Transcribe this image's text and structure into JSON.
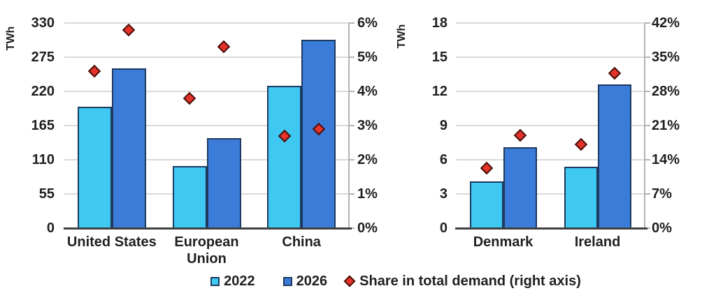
{
  "chart_data": [
    {
      "type": "bar",
      "name": "major-regions",
      "categories": [
        "United States",
        "European Union",
        "China"
      ],
      "series": [
        {
          "name": "2022",
          "type": "bar",
          "axis": "left",
          "values": [
            195,
            100,
            229
          ]
        },
        {
          "name": "2026",
          "type": "bar",
          "axis": "left",
          "values": [
            257,
            145,
            303
          ]
        }
      ],
      "share": {
        "name": "Share in total demand (right axis)",
        "type": "scatter",
        "axis": "right",
        "values_2022": [
          4.6,
          3.8,
          2.7
        ],
        "values_2026": [
          5.8,
          5.3,
          2.9
        ]
      },
      "left_axis": {
        "label": "TWh",
        "ticks": [
          0,
          55,
          110,
          165,
          220,
          275,
          330
        ],
        "max": 330
      },
      "right_axis": {
        "ticks": [
          "0%",
          "1%",
          "2%",
          "3%",
          "4%",
          "5%",
          "6%"
        ],
        "max": 6
      },
      "grid": true,
      "legend_position": "bottom"
    },
    {
      "type": "bar",
      "name": "small-countries",
      "categories": [
        "Denmark",
        "Ireland"
      ],
      "series": [
        {
          "name": "2022",
          "type": "bar",
          "axis": "left",
          "values": [
            4.1,
            5.4
          ]
        },
        {
          "name": "2026",
          "type": "bar",
          "axis": "left",
          "values": [
            7.1,
            12.6
          ]
        }
      ],
      "share": {
        "name": "Share in total demand (right axis)",
        "type": "scatter",
        "axis": "right",
        "values_2022": [
          12.3,
          17.1
        ],
        "values_2026": [
          19.0,
          31.7
        ]
      },
      "left_axis": {
        "label": "TWh",
        "ticks": [
          0,
          3,
          6,
          9,
          12,
          15,
          18
        ],
        "max": 18
      },
      "right_axis": {
        "ticks": [
          "0%",
          "7%",
          "14%",
          "21%",
          "28%",
          "35%",
          "42%"
        ],
        "max": 42
      },
      "grid": true,
      "legend_position": "bottom"
    }
  ],
  "legend": {
    "items": [
      {
        "label": "2022",
        "swatch": "square"
      },
      {
        "label": "2026",
        "swatch": "square"
      },
      {
        "label": "Share in total demand (right axis)",
        "swatch": "diamond"
      }
    ]
  },
  "colors": {
    "bar_2022": "#3ec8f2",
    "bar_2026": "#3b7cd9",
    "bar_border": "#1e3a5f",
    "marker_fill": "#e63329",
    "marker_border": "#45100a",
    "gridline": "#d9d9d9",
    "axis_line": "#3f3f3f",
    "secondary_axis_line": "#b3b3b3",
    "text": "#1f1f1f",
    "background": "#ffffff"
  }
}
